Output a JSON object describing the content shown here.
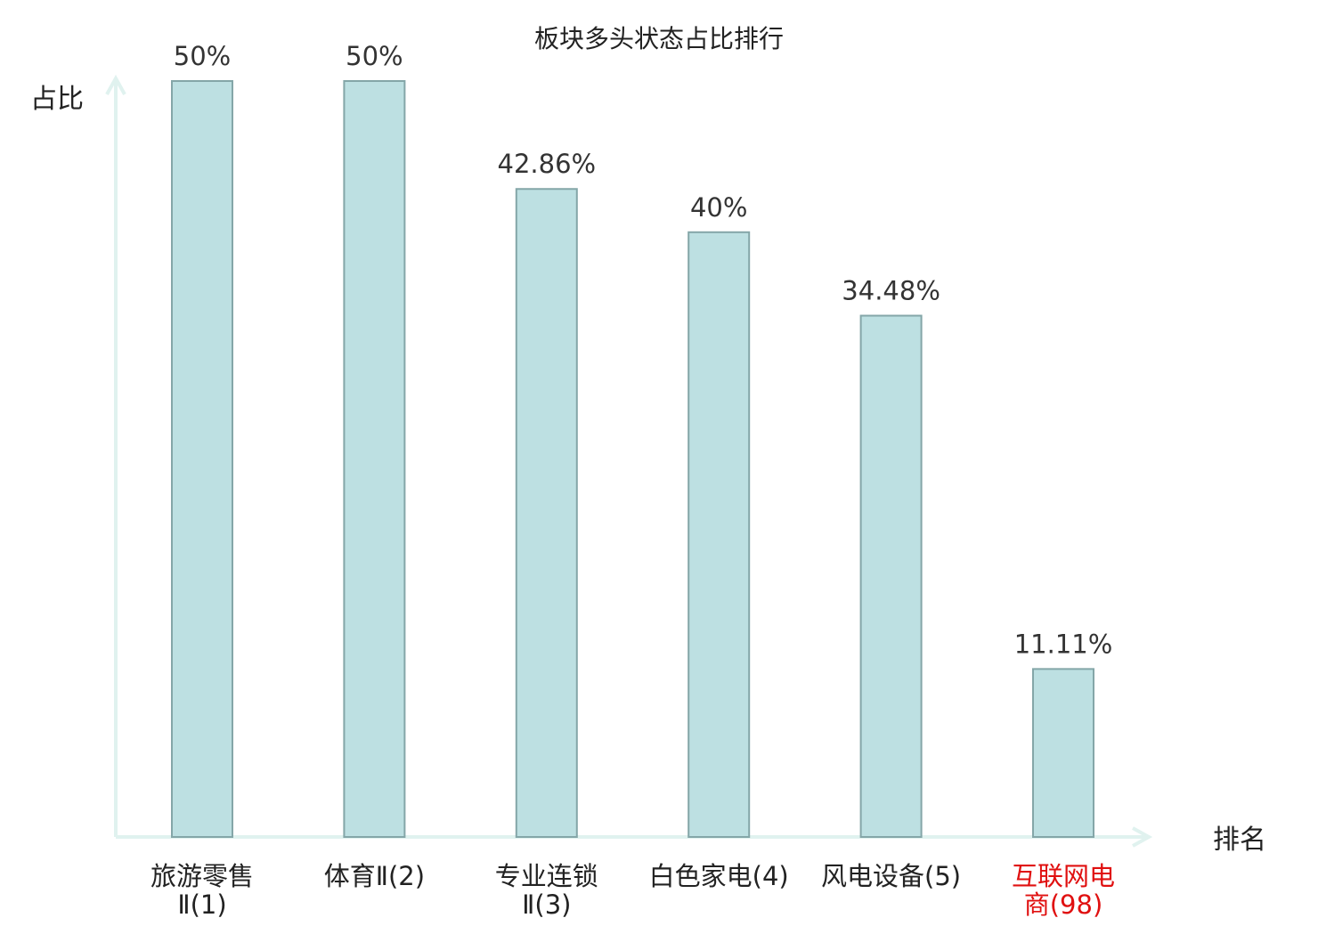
{
  "chart_data": {
    "type": "bar",
    "title": "板块多头状态占比排行",
    "ylabel": "占比",
    "xlabel": "排名",
    "categories": [
      [
        "旅游零售",
        "Ⅱ(1)"
      ],
      [
        "体育Ⅱ(2)"
      ],
      [
        "专业连锁",
        "Ⅱ(3)"
      ],
      [
        "白色家电(4)"
      ],
      [
        "风电设备(5)"
      ],
      [
        "互联网电",
        "商(98)"
      ]
    ],
    "values": [
      50,
      50,
      42.86,
      40,
      34.48,
      11.11
    ],
    "value_labels": [
      "50%",
      "50%",
      "42.86%",
      "40%",
      "34.48%",
      "11.11%"
    ],
    "highlight_index": 5,
    "ylim": [
      0,
      50
    ],
    "grid": false,
    "colors": {
      "bar_fill": "#bde0e2",
      "bar_stroke": "#84a6a8",
      "axis": "#e0f2ef",
      "highlight_label": "#e01010",
      "text": "#333333"
    }
  }
}
